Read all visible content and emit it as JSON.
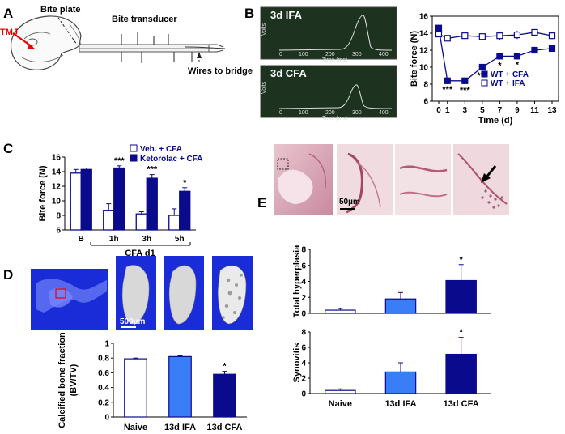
{
  "panel_labels": [
    "A",
    "B",
    "C",
    "D",
    "E"
  ],
  "panel_a": {
    "labels": {
      "bite_plate": "Bite plate",
      "bite_transducer": "Bite transducer",
      "tmj": "TMJ",
      "wires": "Wires to bridge"
    }
  },
  "panel_b_osc": [
    {
      "title": "3d IFA",
      "ylabel": "Volts",
      "xlabel": "Time (ms)",
      "ticks": [
        "0",
        "100",
        "200",
        "300",
        "400"
      ]
    },
    {
      "title": "3d CFA",
      "ylabel": "Volts",
      "xlabel": "Time (ms)",
      "ticks": [
        "0",
        "100",
        "200",
        "300",
        "400"
      ]
    }
  ],
  "chart_data": [
    {
      "id": "B",
      "type": "line",
      "xlabel": "Time (d)",
      "ylabel": "Bite force (N)",
      "xlim": [
        0,
        13
      ],
      "ylim": [
        6,
        16
      ],
      "xticks": [
        "0",
        "1",
        "3",
        "5",
        "7",
        "9",
        "11",
        "13"
      ],
      "yticks": [
        "6",
        "8",
        "10",
        "12",
        "14",
        "16"
      ],
      "x": [
        0,
        1,
        3,
        5,
        7,
        9,
        11,
        13
      ],
      "series": [
        {
          "name": "WT + CFA",
          "filled": true,
          "values": [
            14.6,
            8.4,
            8.4,
            10.0,
            11.3,
            11.3,
            12.0,
            12.2
          ],
          "err": [
            0.3,
            0.3,
            0.4,
            0.3,
            0.4,
            0.3,
            0.3,
            0.2
          ]
        },
        {
          "name": "WT + IFA",
          "filled": false,
          "values": [
            13.9,
            13.4,
            13.7,
            13.6,
            13.7,
            13.8,
            14.1,
            13.7
          ],
          "err": [
            0.3,
            0.2,
            0.3,
            0.3,
            0.5,
            0.5,
            0.2,
            0.4
          ]
        }
      ],
      "annotations": [
        {
          "x": 1,
          "text": "***"
        },
        {
          "x": 3,
          "text": "***"
        },
        {
          "x": 5,
          "text": "***"
        },
        {
          "x": 7,
          "text": "*"
        },
        {
          "x": 9,
          "text": "*"
        }
      ],
      "legend_placement": "bottom-right"
    },
    {
      "id": "C",
      "type": "bar",
      "xlabel": "CFA d1",
      "ylabel": "Bite force (N)",
      "ylim": [
        6,
        16
      ],
      "yticks": [
        "6",
        "8",
        "10",
        "12",
        "14",
        "16"
      ],
      "categories": [
        "B",
        "1h",
        "3h",
        "5h"
      ],
      "series": [
        {
          "name": "Veh. + CFA",
          "filled": false,
          "values": [
            13.8,
            8.7,
            8.2,
            8.0
          ],
          "err": [
            0.5,
            0.9,
            0.3,
            0.9
          ]
        },
        {
          "name": "Ketorolac + CFA",
          "filled": true,
          "values": [
            14.3,
            14.5,
            13.1,
            11.3
          ],
          "err": [
            0.2,
            0.3,
            0.5,
            0.5
          ]
        }
      ],
      "annotations": [
        "",
        "***",
        "***",
        "*"
      ],
      "legend_placement": "top-right"
    },
    {
      "id": "D",
      "type": "bar",
      "ylabel": "Calcified bone fraction (BV/TV)",
      "ylim": [
        0,
        1.0
      ],
      "yticks": [
        "0",
        "0.2",
        "0.4",
        "0.6",
        "0.8",
        "1"
      ],
      "categories": [
        "Naive",
        "13d IFA",
        "13d CFA"
      ],
      "values": [
        0.79,
        0.82,
        0.58
      ],
      "err": [
        0.01,
        0.01,
        0.04
      ],
      "annotations": [
        "",
        "",
        "*"
      ]
    },
    {
      "id": "E1",
      "type": "bar",
      "ylabel": "Total hyperplasia",
      "ylim": [
        0,
        8
      ],
      "yticks": [
        "0",
        "2",
        "4",
        "6",
        "8"
      ],
      "categories": [
        "Naive",
        "13d IFA",
        "13d CFA"
      ],
      "values": [
        0.4,
        1.8,
        4.1
      ],
      "err": [
        0.2,
        0.8,
        2.0
      ],
      "annotations": [
        "",
        "",
        "*"
      ]
    },
    {
      "id": "E2",
      "type": "bar",
      "ylabel": "Synovitis",
      "ylim": [
        0,
        8
      ],
      "yticks": [
        "0",
        "2",
        "4",
        "6",
        "8"
      ],
      "categories": [
        "Naive",
        "13d IFA",
        "13d CFA"
      ],
      "values": [
        0.4,
        2.8,
        5.1
      ],
      "err": [
        0.2,
        1.2,
        2.2
      ],
      "annotations": [
        "",
        "",
        "*"
      ]
    }
  ],
  "scale_bars": {
    "D": "500µm",
    "E": "50µm"
  },
  "colors": {
    "navy": "#0a0a8c",
    "light_blue": "#3a7ef7",
    "scope_bg": "#1d3320",
    "trace": "#e0e0e0"
  }
}
